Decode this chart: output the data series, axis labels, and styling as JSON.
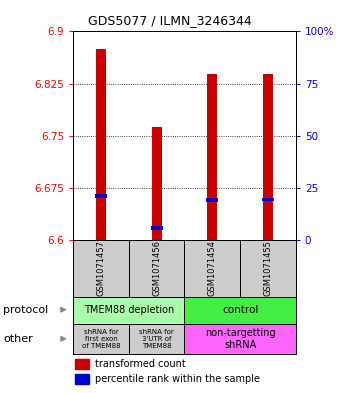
{
  "title": "GDS5077 / ILMN_3246344",
  "samples": [
    "GSM1071457",
    "GSM1071456",
    "GSM1071454",
    "GSM1071455"
  ],
  "red_values": [
    6.875,
    6.763,
    6.838,
    6.838
  ],
  "blue_values": [
    6.663,
    6.617,
    6.657,
    6.658
  ],
  "ylim": [
    6.6,
    6.9
  ],
  "yticks_left": [
    6.6,
    6.675,
    6.75,
    6.825,
    6.9
  ],
  "yticks_right": [
    0,
    25,
    50,
    75,
    100
  ],
  "ytick_labels_right": [
    "0",
    "25",
    "50",
    "75",
    "100%"
  ],
  "grid_values": [
    6.675,
    6.75,
    6.825
  ],
  "red_color": "#cc0000",
  "blue_color": "#0000cc",
  "protocol_label_left": "TMEM88 depletion",
  "protocol_label_right": "control",
  "protocol_color_left": "#aaffaa",
  "protocol_color_right": "#44ee44",
  "other_color_left": "#cccccc",
  "other_color_right": "#ff66ff",
  "other_label_1": "shRNA for\nfirst exon\nof TMEM88",
  "other_label_2": "shRNA for\n3'UTR of\nTMEM88",
  "other_label_3": "non-targetting\nshRNA",
  "legend_red": "transformed count",
  "legend_blue": "percentile rank within the sample",
  "label_protocol": "protocol",
  "label_other": "other"
}
